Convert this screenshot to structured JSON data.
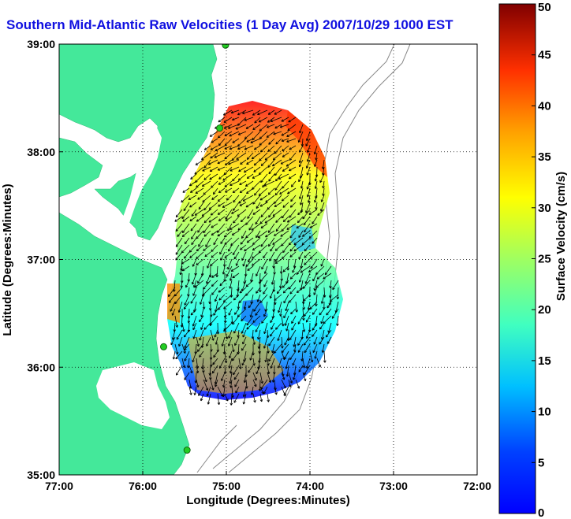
{
  "chart_data": {
    "type": "heatmap",
    "title": "Southern Mid-Atlantic Raw Velocities (1 Day Avg) 2007/10/29 1000 EST",
    "xlabel": "Longitude (Degrees:Minutes)",
    "ylabel": "Latitude (Degrees:Minutes)",
    "x_ticks": [
      "77:00",
      "76:00",
      "75:00",
      "74:00",
      "73:00",
      "72:00"
    ],
    "y_ticks": [
      "39:00",
      "38:00",
      "37:00",
      "36:00",
      "35:00"
    ],
    "xlim": [
      -77,
      -72
    ],
    "ylim": [
      35,
      39
    ],
    "grid": true,
    "colorbar": {
      "label": "Surface Velocity (cm/s)",
      "range": [
        0,
        50
      ],
      "ticks": [
        0,
        5,
        10,
        15,
        20,
        25,
        30,
        35,
        40,
        45,
        50
      ],
      "colormap": "jet"
    },
    "colors": {
      "land": "#44e89a",
      "title": "#1010e0",
      "bathymetry": "#888888",
      "stations": "#22cc22"
    },
    "stations": [
      {
        "lon": -75.01,
        "lat": 38.99
      },
      {
        "lon": -75.08,
        "lat": 38.22
      },
      {
        "lon": -75.75,
        "lat": 36.19
      },
      {
        "lon": -75.47,
        "lat": 35.23
      }
    ]
  }
}
